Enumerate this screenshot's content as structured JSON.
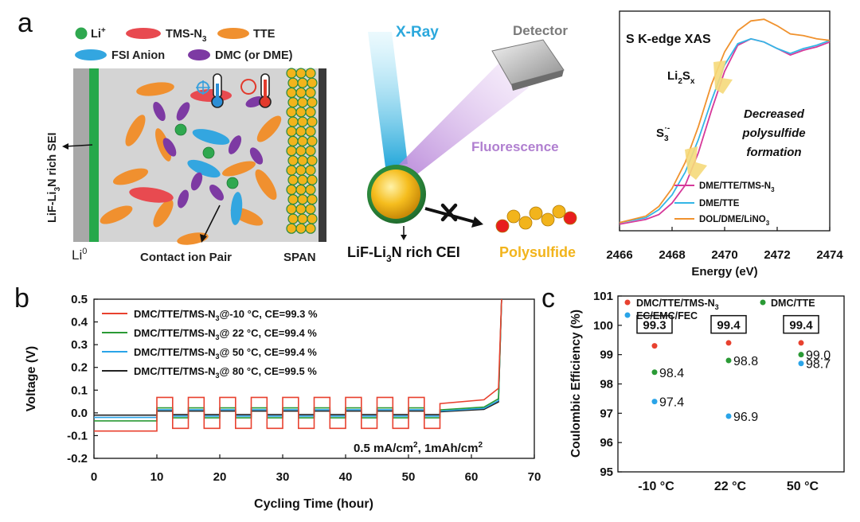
{
  "panel_labels": {
    "a": "a",
    "b": "b",
    "c": "c"
  },
  "schematic": {
    "legend": {
      "li": "Li",
      "li_sup": "+",
      "tms": "TMS-N",
      "tms_sub": "3",
      "tte": "TTE",
      "fsi": "FSI Anion",
      "dmc": "DMC (or DME)"
    },
    "sei_label": "LiF-Li",
    "sei_sub": "3",
    "sei_rest": "N rich SEI",
    "li0": "Li",
    "li0_sup": "0",
    "contact": "Contact ion Pair",
    "span": "SPAN"
  },
  "xray": {
    "xray_label": "X-Ray",
    "detector": "Detector",
    "fluorescence": "Fluorescence",
    "cei_a": "LiF-Li",
    "cei_sub": "3",
    "cei_b": "N rich CEI",
    "polysulfide": "Polysulfide"
  },
  "colors": {
    "dme_tte_tms": "#d6399a",
    "dme_tte": "#33b6e6",
    "dol": "#f0922e",
    "red": "#e8412f",
    "green": "#2a9a35",
    "blue": "#2aa4e8",
    "black": "#222222",
    "li_green": "#2fa84f",
    "tte_orange": "#f0902f",
    "fsi_blue": "#33a6e0",
    "dmc_purple": "#7d3aa3",
    "tms_red": "#e84a50",
    "gold": "#f2b41c"
  },
  "chart_data": [
    {
      "type": "line",
      "title": "S K-edge XAS",
      "xlabel": "Energy (eV)",
      "ylabel": "",
      "xlim": [
        2466,
        2474
      ],
      "ylim": [
        0,
        1.35
      ],
      "x_ticks": [
        "2466",
        "2468",
        "2470",
        "2472",
        "2474"
      ],
      "annotations": {
        "li2sx_a": "Li",
        "li2sx_sub": "2",
        "li2sx_b": "S",
        "li2sx_sub2": "x",
        "s3_a": "S",
        "s3_sub": "3",
        "s3_sup": "·-",
        "decrease_1": "Decreased",
        "decrease_2": "polysulfide",
        "decrease_3": "formation"
      },
      "legend_text": {
        "s1_a": "DME/TTE/TMS-N",
        "s1_sub": "3",
        "s2": "DME/TTE",
        "s3_a": "DOL/DME/LiNO",
        "s3_sub": "3"
      },
      "series": [
        {
          "name": "DME/TTE/TMS-N3",
          "color_key": "dme_tte_tms",
          "x": [
            2466,
            2467,
            2467.5,
            2468,
            2468.5,
            2469,
            2469.5,
            2470,
            2470.5,
            2471,
            2471.5,
            2472,
            2472.5,
            2473,
            2473.5,
            2474
          ],
          "y": [
            0.04,
            0.07,
            0.1,
            0.17,
            0.28,
            0.48,
            0.74,
            0.98,
            1.14,
            1.18,
            1.16,
            1.12,
            1.08,
            1.11,
            1.13,
            1.16
          ]
        },
        {
          "name": "DME/TTE",
          "color_key": "dme_tte",
          "x": [
            2466,
            2467,
            2467.5,
            2468,
            2468.5,
            2469,
            2469.5,
            2470,
            2470.5,
            2471,
            2471.5,
            2472,
            2472.5,
            2473,
            2473.5,
            2474
          ],
          "y": [
            0.05,
            0.08,
            0.13,
            0.22,
            0.36,
            0.56,
            0.8,
            1.02,
            1.15,
            1.18,
            1.16,
            1.12,
            1.09,
            1.12,
            1.14,
            1.17
          ]
        },
        {
          "name": "DOL/DME/LiNO3",
          "color_key": "dol",
          "x": [
            2466,
            2467,
            2467.5,
            2468,
            2468.5,
            2469,
            2469.5,
            2470,
            2470.5,
            2471,
            2471.5,
            2472,
            2472.5,
            2473,
            2473.5,
            2474
          ],
          "y": [
            0.05,
            0.09,
            0.15,
            0.26,
            0.42,
            0.64,
            0.9,
            1.1,
            1.23,
            1.29,
            1.3,
            1.26,
            1.21,
            1.2,
            1.18,
            1.17
          ]
        }
      ]
    },
    {
      "type": "line",
      "title": "",
      "xlabel": "Cycling Time (hour)",
      "ylabel": "Voltage (V)",
      "xlim": [
        0,
        70
      ],
      "ylim": [
        -0.2,
        0.5
      ],
      "x_ticks": [
        0,
        10,
        20,
        30,
        40,
        50,
        60,
        70
      ],
      "y_ticks": [
        "0.5",
        "0.4",
        "0.3",
        "0.2",
        "0.1",
        "0.0",
        "-0.1",
        "-0.2"
      ],
      "annotation_a": "0.5 mA/cm",
      "annotation_sup1": "2",
      "annotation_b": ", 1mAh/cm",
      "annotation_sup2": "2",
      "series": [
        {
          "name_a": "DMC/TTE/TMS-N",
          "name_sub": "3",
          "name_b": "@-10 °C, CE=99.3 %",
          "color_key": "red",
          "plateau": -0.08,
          "amp": 0.068
        },
        {
          "name_a": "DMC/TTE/TMS-N",
          "name_sub": "3",
          "name_b": "@ 22 °C, CE=99.4 %",
          "color_key": "green",
          "plateau": -0.035,
          "amp": 0.022
        },
        {
          "name_a": "DMC/TTE/TMS-N",
          "name_sub": "3",
          "name_b": "@ 50 °C, CE=99.4 %",
          "color_key": "blue",
          "plateau": -0.02,
          "amp": 0.014
        },
        {
          "name_a": "DMC/TTE/TMS-N",
          "name_sub": "3",
          "name_b": "@ 80 °C, CE=99.5 %",
          "color_key": "black",
          "plateau": -0.01,
          "amp": 0.008
        }
      ]
    },
    {
      "type": "scatter",
      "title": "",
      "xlabel": "",
      "ylabel": "Coulombic Efficiency (%)",
      "ylim": [
        95,
        101
      ],
      "y_ticks": [
        "101",
        "100",
        "99",
        "98",
        "97",
        "96",
        "95"
      ],
      "categories": [
        "-10 °C",
        "22 °C",
        "50 °C"
      ],
      "legend_text": {
        "s1_a": "DMC/TTE/TMS-N",
        "s1_sub": "3",
        "s2": "DMC/TTE",
        "s3": "EC/EMC/FEC"
      },
      "series": [
        {
          "name": "DMC/TTE/TMS-N3",
          "color_key": "red",
          "values": [
            99.3,
            99.4,
            99.4
          ],
          "labels": [
            "99.3",
            "99.4",
            "99.4"
          ]
        },
        {
          "name": "DMC/TTE",
          "color_key": "green",
          "values": [
            98.4,
            98.8,
            99.0
          ],
          "labels": [
            "98.4",
            "98.8",
            "99.0"
          ]
        },
        {
          "name": "EC/EMC/FEC",
          "color_key": "blue",
          "values": [
            97.4,
            96.9,
            98.7
          ],
          "labels": [
            "97.4",
            "96.9",
            "98.7"
          ]
        }
      ]
    }
  ]
}
